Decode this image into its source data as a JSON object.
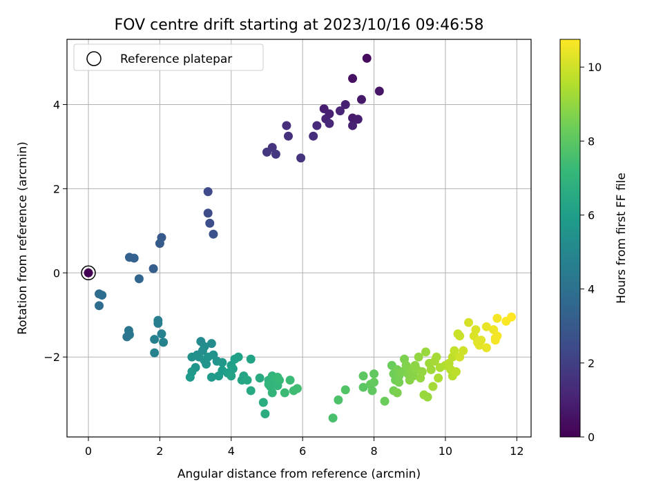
{
  "chart_data": {
    "type": "scatter",
    "title": "FOV centre drift starting at 2023/10/16 09:46:58",
    "xlabel": "Angular distance from reference (arcmin)",
    "ylabel": "Rotation from reference (arcmin)",
    "xlim": [
      -0.6,
      12.4
    ],
    "ylim": [
      -3.9,
      5.55
    ],
    "xticks": [
      0,
      2,
      4,
      6,
      8,
      10,
      12
    ],
    "yticks": [
      -2,
      0,
      2,
      4
    ],
    "grid": true,
    "legend": {
      "entries": [
        "Reference platepar"
      ],
      "placement": "upper-left"
    },
    "colorbar": {
      "label": "Hours from first FF file",
      "range": [
        0,
        10.75
      ],
      "ticks": [
        0,
        2,
        4,
        6,
        8,
        10
      ],
      "colormap": "viridis"
    },
    "reference_point": {
      "x": 0,
      "y": 0
    },
    "points": [
      [
        0.0,
        0.0,
        0.0
      ],
      [
        7.8,
        5.1,
        0.3
      ],
      [
        7.4,
        4.62,
        0.5
      ],
      [
        8.15,
        4.32,
        0.6
      ],
      [
        7.65,
        4.12,
        0.7
      ],
      [
        6.6,
        3.9,
        0.9
      ],
      [
        6.75,
        3.78,
        1.0
      ],
      [
        7.2,
        4.0,
        1.0
      ],
      [
        7.05,
        3.85,
        1.1
      ],
      [
        6.65,
        3.66,
        1.1
      ],
      [
        6.75,
        3.55,
        1.2
      ],
      [
        7.4,
        3.68,
        0.8
      ],
      [
        7.55,
        3.65,
        0.9
      ],
      [
        7.4,
        3.5,
        1.0
      ],
      [
        6.4,
        3.5,
        1.3
      ],
      [
        5.55,
        3.5,
        1.4
      ],
      [
        6.3,
        3.25,
        1.4
      ],
      [
        5.6,
        3.25,
        1.5
      ],
      [
        5.15,
        2.98,
        1.6
      ],
      [
        5.0,
        2.87,
        1.7
      ],
      [
        5.25,
        2.82,
        1.7
      ],
      [
        5.95,
        2.73,
        1.6
      ],
      [
        3.35,
        1.93,
        2.4
      ],
      [
        3.35,
        1.42,
        2.5
      ],
      [
        3.4,
        1.18,
        2.6
      ],
      [
        3.5,
        0.92,
        2.7
      ],
      [
        2.05,
        0.84,
        3.0
      ],
      [
        2.0,
        0.7,
        3.1
      ],
      [
        1.15,
        0.37,
        3.3
      ],
      [
        1.28,
        0.35,
        3.3
      ],
      [
        1.82,
        0.1,
        3.2
      ],
      [
        1.42,
        -0.14,
        3.5
      ],
      [
        0.3,
        -0.5,
        3.7
      ],
      [
        0.38,
        -0.53,
        3.8
      ],
      [
        0.3,
        -0.78,
        3.8
      ],
      [
        1.13,
        -1.37,
        4.2
      ],
      [
        1.15,
        -1.47,
        4.3
      ],
      [
        1.08,
        -1.52,
        4.2
      ],
      [
        1.95,
        -1.13,
        4.6
      ],
      [
        1.95,
        -1.2,
        4.6
      ],
      [
        2.05,
        -1.45,
        4.7
      ],
      [
        1.85,
        -1.58,
        4.7
      ],
      [
        2.1,
        -1.65,
        4.8
      ],
      [
        1.85,
        -1.9,
        4.8
      ],
      [
        3.15,
        -1.63,
        5.1
      ],
      [
        3.45,
        -1.68,
        5.2
      ],
      [
        3.25,
        -1.75,
        5.2
      ],
      [
        3.05,
        -1.95,
        5.3
      ],
      [
        3.2,
        -1.85,
        5.3
      ],
      [
        2.9,
        -2.0,
        5.4
      ],
      [
        3.1,
        -2.0,
        5.4
      ],
      [
        3.35,
        -2.0,
        5.5
      ],
      [
        3.5,
        -1.95,
        5.5
      ],
      [
        3.25,
        -2.08,
        5.5
      ],
      [
        3.3,
        -2.17,
        5.6
      ],
      [
        3.6,
        -2.1,
        5.6
      ],
      [
        3.75,
        -2.13,
        5.7
      ],
      [
        3.0,
        -2.25,
        5.6
      ],
      [
        2.9,
        -2.35,
        5.7
      ],
      [
        2.85,
        -2.48,
        5.8
      ],
      [
        3.45,
        -2.48,
        5.8
      ],
      [
        3.65,
        -2.45,
        5.9
      ],
      [
        3.75,
        -2.32,
        5.9
      ],
      [
        3.9,
        -2.38,
        6.0
      ],
      [
        4.0,
        -2.2,
        6.0
      ],
      [
        4.1,
        -2.05,
        6.1
      ],
      [
        4.2,
        -2.0,
        6.1
      ],
      [
        4.05,
        -2.28,
        6.1
      ],
      [
        4.0,
        -2.45,
        6.2
      ],
      [
        4.35,
        -2.45,
        6.3
      ],
      [
        4.3,
        -2.55,
        6.3
      ],
      [
        4.45,
        -2.55,
        6.4
      ],
      [
        4.55,
        -2.05,
        6.2
      ],
      [
        4.55,
        -2.8,
        6.5
      ],
      [
        4.8,
        -2.5,
        6.5
      ],
      [
        4.9,
        -3.08,
        6.7
      ],
      [
        4.95,
        -3.35,
        6.6
      ],
      [
        5.05,
        -2.55,
        6.9
      ],
      [
        5.1,
        -2.7,
        7.0
      ],
      [
        5.15,
        -2.45,
        7.0
      ],
      [
        5.2,
        -2.55,
        7.1
      ],
      [
        5.3,
        -2.48,
        7.2
      ],
      [
        5.15,
        -2.85,
        7.0
      ],
      [
        5.05,
        -2.65,
        7.0
      ],
      [
        5.3,
        -2.68,
        7.1
      ],
      [
        5.35,
        -2.55,
        7.2
      ],
      [
        5.5,
        -2.85,
        7.3
      ],
      [
        5.65,
        -2.55,
        7.3
      ],
      [
        5.75,
        -2.8,
        7.4
      ],
      [
        5.85,
        -2.75,
        7.4
      ],
      [
        6.85,
        -3.45,
        7.6
      ],
      [
        7.0,
        -3.02,
        7.7
      ],
      [
        7.2,
        -2.78,
        7.8
      ],
      [
        7.7,
        -2.45,
        8.0
      ],
      [
        7.7,
        -2.72,
        8.0
      ],
      [
        7.9,
        -2.65,
        8.1
      ],
      [
        7.95,
        -2.8,
        8.1
      ],
      [
        8.0,
        -2.4,
        8.1
      ],
      [
        8.0,
        -2.6,
        8.2
      ],
      [
        8.3,
        -3.05,
        8.3
      ],
      [
        8.5,
        -2.2,
        8.3
      ],
      [
        8.55,
        -2.4,
        8.4
      ],
      [
        8.6,
        -2.55,
        8.4
      ],
      [
        8.65,
        -2.3,
        8.5
      ],
      [
        8.7,
        -2.45,
        8.5
      ],
      [
        8.55,
        -2.8,
        8.5
      ],
      [
        8.65,
        -2.85,
        8.6
      ],
      [
        8.7,
        -2.6,
        8.5
      ],
      [
        8.8,
        -2.35,
        8.6
      ],
      [
        8.85,
        -2.05,
        8.6
      ],
      [
        8.9,
        -2.2,
        8.7
      ],
      [
        8.95,
        -2.4,
        8.7
      ],
      [
        9.0,
        -2.55,
        8.8
      ],
      [
        9.05,
        -2.3,
        8.8
      ],
      [
        9.1,
        -2.45,
        8.8
      ],
      [
        9.15,
        -2.2,
        8.9
      ],
      [
        9.2,
        -2.3,
        8.9
      ],
      [
        9.25,
        -2.0,
        9.0
      ],
      [
        9.3,
        -2.5,
        9.0
      ],
      [
        9.35,
        -2.35,
        9.0
      ],
      [
        9.4,
        -2.9,
        9.1
      ],
      [
        9.45,
        -1.88,
        9.1
      ],
      [
        9.5,
        -2.95,
        9.1
      ],
      [
        9.55,
        -2.15,
        9.2
      ],
      [
        9.6,
        -2.3,
        9.2
      ],
      [
        9.65,
        -2.7,
        9.3
      ],
      [
        9.7,
        -2.1,
        9.3
      ],
      [
        9.75,
        -2.0,
        9.3
      ],
      [
        9.8,
        -2.5,
        9.4
      ],
      [
        9.85,
        -2.25,
        9.4
      ],
      [
        10.0,
        -2.2,
        9.5
      ],
      [
        10.1,
        -2.15,
        9.6
      ],
      [
        10.15,
        -2.3,
        9.6
      ],
      [
        10.2,
        -2.45,
        9.6
      ],
      [
        10.3,
        -2.35,
        9.7
      ],
      [
        10.2,
        -2.0,
        9.7
      ],
      [
        10.25,
        -1.85,
        9.8
      ],
      [
        10.35,
        -1.45,
        9.9
      ],
      [
        10.4,
        -1.5,
        9.9
      ],
      [
        10.5,
        -1.85,
        10.0
      ],
      [
        10.4,
        -2.0,
        10.0
      ],
      [
        10.65,
        -1.18,
        10.1
      ],
      [
        10.8,
        -1.5,
        10.2
      ],
      [
        10.85,
        -1.35,
        10.2
      ],
      [
        10.9,
        -1.65,
        10.3
      ],
      [
        10.95,
        -1.72,
        10.3
      ],
      [
        11.0,
        -1.6,
        10.3
      ],
      [
        11.15,
        -1.78,
        10.4
      ],
      [
        11.15,
        -1.28,
        10.4
      ],
      [
        11.35,
        -1.35,
        10.5
      ],
      [
        11.4,
        -1.55,
        10.5
      ],
      [
        11.45,
        -1.5,
        10.6
      ],
      [
        11.4,
        -1.6,
        10.6
      ],
      [
        11.45,
        -1.08,
        10.6
      ],
      [
        11.7,
        -1.15,
        10.7
      ],
      [
        11.85,
        -1.05,
        10.75
      ]
    ]
  }
}
